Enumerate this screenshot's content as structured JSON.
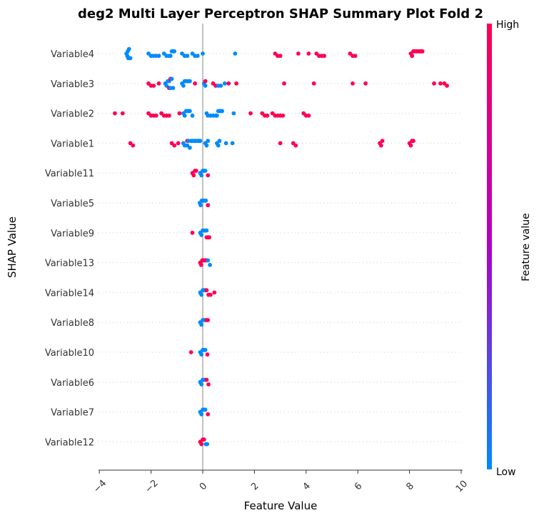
{
  "chart_data": {
    "type": "scatter",
    "title": "deg2 Multi Layer Perceptron SHAP Summary Plot Fold 2",
    "xlabel": "Feature Value",
    "ylabel": "SHAP Value",
    "xlim": [
      -4,
      10
    ],
    "xticks": [
      "−4",
      "−2",
      "0",
      "2",
      "4",
      "6",
      "8",
      "10"
    ],
    "xtick_values": [
      -4,
      -2,
      0,
      2,
      4,
      6,
      8,
      10
    ],
    "colorbar": {
      "label": "Feature value",
      "high": "High",
      "low": "Low",
      "high_color": "#ff0052",
      "low_color": "#008bfb",
      "mid_color": "#b000c8"
    },
    "features": [
      {
        "name": "Variable4",
        "blue": [
          -2.95,
          -2.9,
          -2.85,
          -2.92,
          -2.88,
          -2.8,
          -2.1,
          -2.0,
          -1.9,
          -1.8,
          -1.7,
          -1.5,
          -1.4,
          -1.3,
          -1.25,
          -1.2,
          -1.15,
          -1.1,
          -0.8,
          -0.7,
          -0.6,
          -0.4,
          -0.3,
          -0.2,
          0.0,
          1.25
        ],
        "red": [
          2.8,
          2.9,
          3.0,
          3.7,
          4.1,
          4.4,
          4.5,
          4.6,
          4.7,
          5.7,
          5.8,
          5.9,
          8.05,
          8.1,
          8.15,
          8.2,
          8.25,
          8.3,
          8.35,
          8.4,
          8.45,
          8.5
        ]
      },
      {
        "name": "Variable3",
        "blue": [
          -1.45,
          -1.4,
          -1.35,
          -1.3,
          -1.25,
          -1.2,
          -1.15,
          -0.8,
          -0.75,
          -0.7,
          -0.65,
          -0.6,
          -0.55,
          -0.5,
          0.05,
          0.1,
          0.6,
          0.7,
          0.85
        ],
        "red": [
          -2.1,
          -2.0,
          -1.9,
          -1.7,
          -1.3,
          -1.25,
          -0.3,
          0.1,
          0.4,
          0.5,
          1.0,
          1.3,
          3.15,
          4.3,
          5.8,
          6.3,
          8.95,
          9.2,
          9.35,
          9.45
        ]
      },
      {
        "name": "Variable2",
        "blue": [
          -0.75,
          -0.7,
          -0.65,
          -0.6,
          -0.55,
          -0.5,
          -0.4,
          0.15,
          0.2,
          0.3,
          0.4,
          0.5,
          0.55,
          0.6,
          0.65,
          0.7,
          0.75,
          1.2
        ],
        "red": [
          -3.4,
          -3.1,
          -2.1,
          -2.0,
          -1.9,
          -1.8,
          -1.6,
          -1.5,
          -1.4,
          -1.3,
          -0.9,
          1.85,
          2.3,
          2.4,
          2.5,
          2.7,
          2.8,
          2.9,
          3.0,
          3.1,
          3.9,
          4.0,
          4.1
        ]
      },
      {
        "name": "Variable1",
        "blue": [
          -0.75,
          -0.7,
          -0.6,
          -0.55,
          -0.5,
          -0.45,
          -0.4,
          -0.35,
          -0.3,
          -0.25,
          -0.2,
          -0.15,
          -0.1,
          0.1,
          0.15,
          0.2,
          0.55,
          0.6,
          0.65,
          0.9,
          1.15
        ],
        "red": [
          -2.8,
          -2.7,
          -1.2,
          -1.1,
          -0.95,
          -0.6,
          3.0,
          3.5,
          3.6,
          6.85,
          6.9,
          6.95,
          8.0,
          8.05,
          8.1,
          8.15
        ]
      },
      {
        "name": "Variable11",
        "blue": [
          -0.1,
          -0.05,
          0.0,
          0.05,
          0.1
        ],
        "red": [
          -0.4,
          -0.35,
          -0.3,
          -0.25,
          0.2
        ]
      },
      {
        "name": "Variable5",
        "blue": [
          -0.12,
          -0.08,
          -0.04,
          0.0,
          0.04,
          0.08,
          0.12
        ],
        "red": [
          0.2
        ]
      },
      {
        "name": "Variable9",
        "blue": [
          -0.1,
          -0.05,
          0.0,
          0.05,
          0.1,
          0.15
        ],
        "red": [
          -0.4,
          0.15,
          0.2,
          0.25
        ]
      },
      {
        "name": "Variable13",
        "blue": [
          0.2,
          0.28
        ],
        "red": [
          -0.1,
          -0.06,
          -0.02,
          0.02,
          0.06,
          0.1,
          0.14
        ]
      },
      {
        "name": "Variable14",
        "blue": [
          -0.1,
          -0.05,
          0.0,
          0.05,
          0.1
        ],
        "red": [
          0.15,
          0.22,
          0.3,
          0.45
        ]
      },
      {
        "name": "Variable8",
        "blue": [
          -0.1,
          -0.05,
          0.0,
          0.05,
          0.1
        ],
        "red": [
          0.15,
          0.2
        ]
      },
      {
        "name": "Variable10",
        "blue": [
          -0.1,
          -0.05,
          0.0,
          0.05,
          0.1
        ],
        "red": [
          -0.45,
          0.18
        ]
      },
      {
        "name": "Variable6",
        "blue": [
          -0.1,
          -0.05,
          0.0,
          0.05,
          0.1
        ],
        "red": [
          0.15,
          0.22
        ]
      },
      {
        "name": "Variable7",
        "blue": [
          -0.1,
          -0.05,
          0.0,
          0.05,
          0.1
        ],
        "red": [
          0.2
        ]
      },
      {
        "name": "Variable12",
        "blue": [
          0.12,
          0.17
        ],
        "red": [
          -0.1,
          -0.05,
          0.0,
          0.05
        ]
      }
    ]
  }
}
